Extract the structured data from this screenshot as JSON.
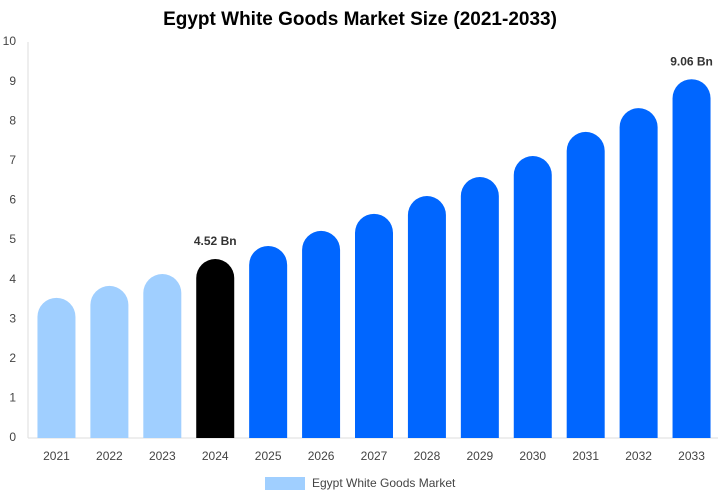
{
  "chart_data": {
    "type": "bar",
    "title": "Egypt White Goods Market Size (2021-2033)",
    "categories": [
      "2021",
      "2022",
      "2023",
      "2024",
      "2025",
      "2026",
      "2027",
      "2028",
      "2029",
      "2030",
      "2031",
      "2032",
      "2033"
    ],
    "series": [
      {
        "name": "Egypt White Goods Market",
        "color": "#a0cfff",
        "values": [
          3.54,
          3.84,
          4.14,
          4.52,
          4.85,
          5.23,
          5.66,
          6.11,
          6.59,
          7.12,
          7.73,
          8.33,
          9.06
        ],
        "colors": [
          "#a0cfff",
          "#a0cfff",
          "#a0cfff",
          "#000000",
          "#0066ff",
          "#0066ff",
          "#0066ff",
          "#0066ff",
          "#0066ff",
          "#0066ff",
          "#0066ff",
          "#0066ff",
          "#0066ff"
        ],
        "value_labels": [
          null,
          null,
          null,
          "4.52 Bn",
          null,
          null,
          null,
          null,
          null,
          null,
          null,
          null,
          "9.06 Bn"
        ]
      }
    ],
    "ylim": [
      0,
      10
    ],
    "yticks": [
      0,
      1,
      2,
      3,
      4,
      5,
      6,
      7,
      8,
      9,
      10
    ],
    "grid": false
  }
}
